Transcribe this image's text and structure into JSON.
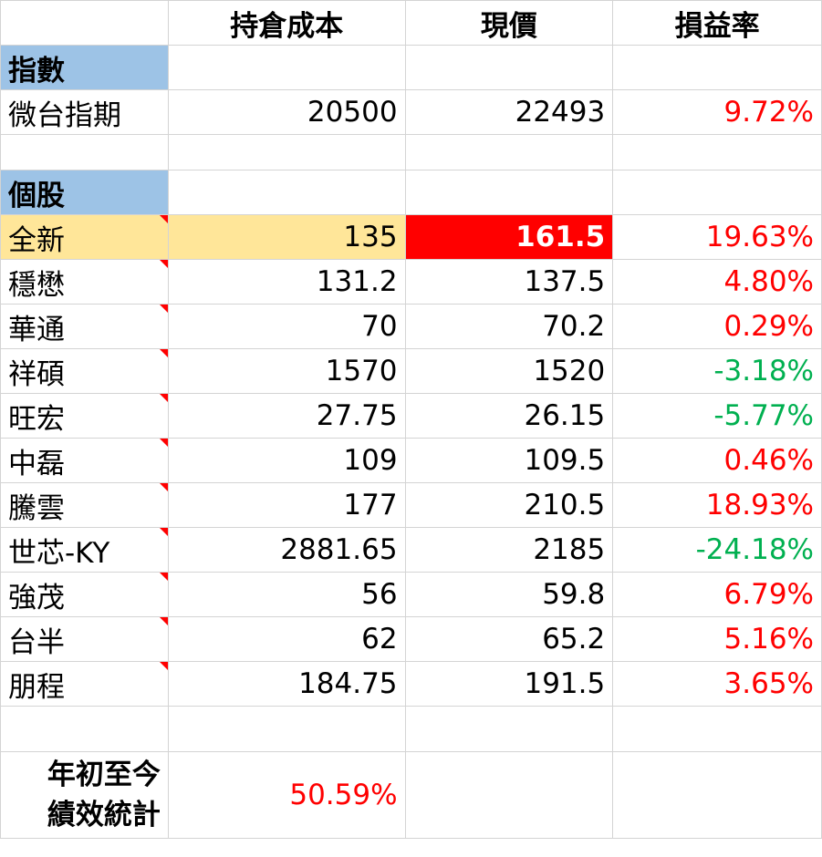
{
  "headers": [
    "",
    "持倉成本",
    "現價",
    "損益率"
  ],
  "index_section": {
    "label": "指數",
    "rows": [
      {
        "name": "微台指期",
        "cost": "20500",
        "price": "22493",
        "pnl": "9.72%",
        "pnl_color": "red"
      }
    ]
  },
  "stock_section": {
    "label": "個股",
    "rows": [
      {
        "name": "全新",
        "cost": "135",
        "price": "161.5",
        "pnl": "19.63%",
        "pnl_color": "red",
        "highlighted": true
      },
      {
        "name": "穩懋",
        "cost": "131.2",
        "price": "137.5",
        "pnl": "4.80%",
        "pnl_color": "red"
      },
      {
        "name": "華通",
        "cost": "70",
        "price": "70.2",
        "pnl": "0.29%",
        "pnl_color": "red"
      },
      {
        "name": "祥碩",
        "cost": "1570",
        "price": "1520",
        "pnl": "-3.18%",
        "pnl_color": "green"
      },
      {
        "name": "旺宏",
        "cost": "27.75",
        "price": "26.15",
        "pnl": "-5.77%",
        "pnl_color": "green"
      },
      {
        "name": "中磊",
        "cost": "109",
        "price": "109.5",
        "pnl": "0.46%",
        "pnl_color": "red"
      },
      {
        "name": "騰雲",
        "cost": "177",
        "price": "210.5",
        "pnl": "18.93%",
        "pnl_color": "red"
      },
      {
        "name": "世芯-KY",
        "cost": "2881.65",
        "price": "2185",
        "pnl": "-24.18%",
        "pnl_color": "green"
      },
      {
        "name": "強茂",
        "cost": "56",
        "price": "59.8",
        "pnl": "6.79%",
        "pnl_color": "red"
      },
      {
        "name": "台半",
        "cost": "62",
        "price": "65.2",
        "pnl": "5.16%",
        "pnl_color": "red"
      },
      {
        "name": "朋程",
        "cost": "184.75",
        "price": "191.5",
        "pnl": "3.65%",
        "pnl_color": "red"
      }
    ]
  },
  "summary": {
    "label_line1": "年初至今",
    "label_line2": "績效統計",
    "value": "50.59%"
  },
  "colors": {
    "section_bg": "#9dc3e6",
    "highlight_bg": "#ffe699",
    "price_highlight_bg": "#ff0000",
    "gain": "#ff0000",
    "loss": "#00b050",
    "comment_marker": "#ff0000"
  }
}
